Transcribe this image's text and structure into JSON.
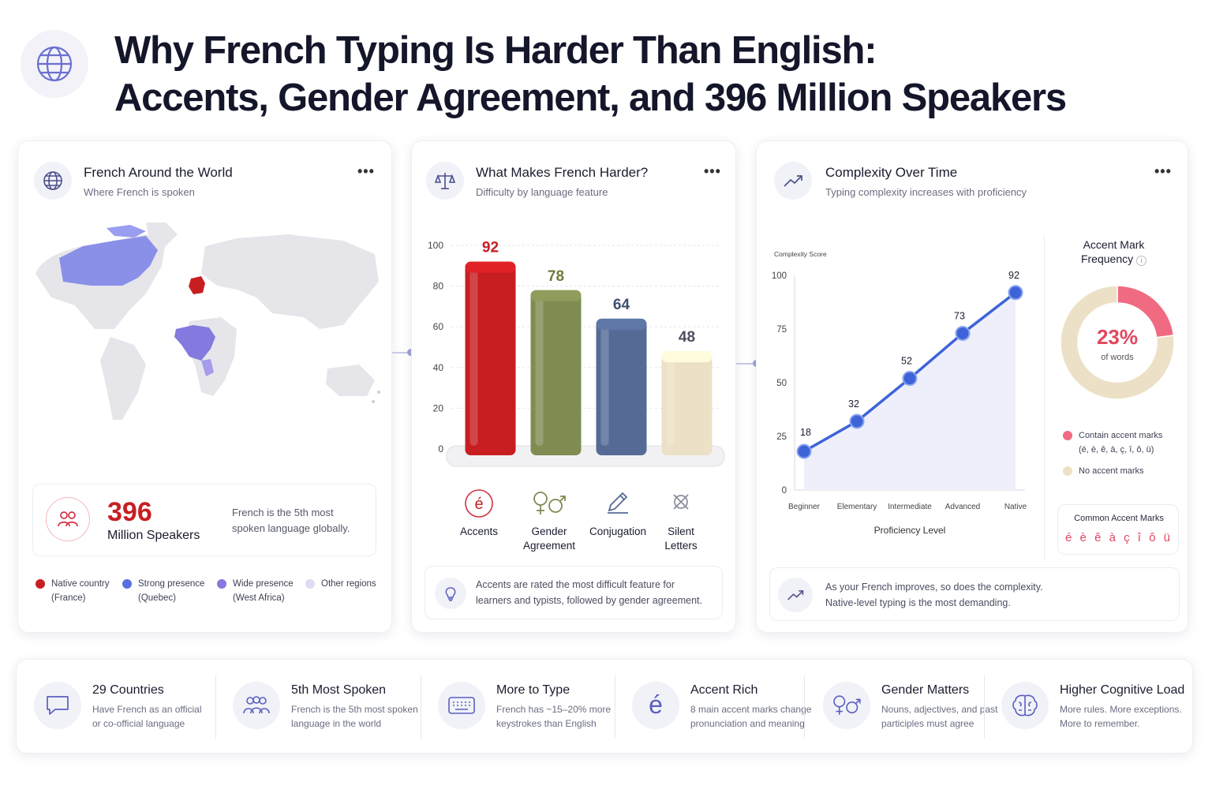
{
  "title_line1": "Why French Typing Is Harder Than English:",
  "title_line2": "Accents, Gender Agreement, and 396 Million Speakers",
  "colors": {
    "accent_red": "#c81e22",
    "primary_blue": "#3e63d8",
    "olive": "#7f8c52",
    "slate": "#556b96",
    "cream": "#ece1c6",
    "pink": "#f06a82",
    "purple": "#6f6fd6"
  },
  "map_card": {
    "title": "French Around the World",
    "subtitle": "Where French is spoken",
    "stat_number": "396",
    "stat_label": "Million Speakers",
    "stat_desc": "French is the 5th most spoken language globally.",
    "legend": [
      {
        "color": "#c81e22",
        "line1": "Native country",
        "line2": "(France)"
      },
      {
        "color": "#5a6fe0",
        "line1": "Strong presence",
        "line2": "(Quebec)"
      },
      {
        "color": "#8479de",
        "line1": "Wide presence",
        "line2": "(West Africa)"
      },
      {
        "color": "#dcdcf4",
        "line1": "Other regions",
        "line2": ""
      }
    ]
  },
  "bar_card": {
    "title": "What Makes French Harder?",
    "subtitle": "Difficulty by language feature",
    "features": [
      {
        "line1": "Accents",
        "line2": "",
        "icon": "e-accent-icon"
      },
      {
        "line1": "Gender",
        "line2": "Agreement",
        "icon": "gender-icon"
      },
      {
        "line1": "Conjugation",
        "line2": "",
        "icon": "pencil-icon"
      },
      {
        "line1": "Silent",
        "line2": "Letters",
        "icon": "silent-letters-icon"
      }
    ],
    "note": "Accents are rated the most difficult feature for learners and typists, followed by gender agreement."
  },
  "line_card": {
    "title": "Complexity Over Time",
    "subtitle": "Typing complexity increases with proficiency",
    "note_line1": "As your French improves, so does the complexity.",
    "note_line2": "Native-level typing is the most demanding."
  },
  "donut": {
    "title_line1": "Accent Mark",
    "title_line2": "Frequency",
    "center_value": "23%",
    "center_label": "of words",
    "legend": [
      {
        "color": "#f06a82",
        "line1": "Contain accent marks",
        "line2": "(é, è, ê, à, ç, î, ô, ü)"
      },
      {
        "color": "#ece1c6",
        "line1": "No accent marks",
        "line2": ""
      }
    ],
    "accents_title": "Common Accent Marks",
    "accents": "é è ê à ç î ô ü"
  },
  "chart_data": [
    {
      "type": "bar",
      "categories": [
        "Accents",
        "Gender Agreement",
        "Conjugation",
        "Silent Letters"
      ],
      "values": [
        92,
        78,
        64,
        48
      ],
      "ylim": [
        0,
        100
      ],
      "yticks": [
        0,
        20,
        40,
        60,
        80,
        100
      ],
      "colors": [
        "#c81e22",
        "#7f8c52",
        "#556b96",
        "#ece1c6"
      ],
      "label_colors": [
        "#c81e22",
        "#6f7a3e",
        "#3f4e6e",
        "#4c4e5e"
      ]
    },
    {
      "type": "line",
      "x": [
        "Beginner",
        "Elementary",
        "Intermediate",
        "Advanced",
        "Native"
      ],
      "values": [
        18,
        32,
        52,
        73,
        92
      ],
      "ylabel": "Complexity Score",
      "xlabel": "Proficiency Level",
      "ylim": [
        0,
        100
      ],
      "yticks": [
        0,
        25,
        50,
        75,
        100
      ]
    },
    {
      "type": "pie",
      "categories": [
        "Contain accent marks",
        "No accent marks"
      ],
      "values": [
        23,
        77
      ],
      "colors": [
        "#f06a82",
        "#ece1c6"
      ]
    }
  ],
  "bottom_items": [
    {
      "title": "29 Countries",
      "line1": "Have French as an official",
      "line2": "or co-official language",
      "icon": "chat-bubble-icon"
    },
    {
      "title": "5th Most Spoken",
      "line1": "French is the 5th most spoken",
      "line2": "language in the world",
      "icon": "people-icon"
    },
    {
      "title": "More to Type",
      "line1": "French has ~15–20% more",
      "line2": "keystrokes than English",
      "icon": "keyboard-icon"
    },
    {
      "title": "Accent Rich",
      "line1": "8 main accent marks change",
      "line2": "pronunciation and meaning",
      "icon": "e-accent-icon"
    },
    {
      "title": "Gender Matters",
      "line1": "Nouns, adjectives, and past",
      "line2": "participles must agree",
      "icon": "gender-icon"
    },
    {
      "title": "Higher Cognitive Load",
      "line1": "More rules. More exceptions.",
      "line2": "More to remember.",
      "icon": "brain-icon"
    }
  ]
}
